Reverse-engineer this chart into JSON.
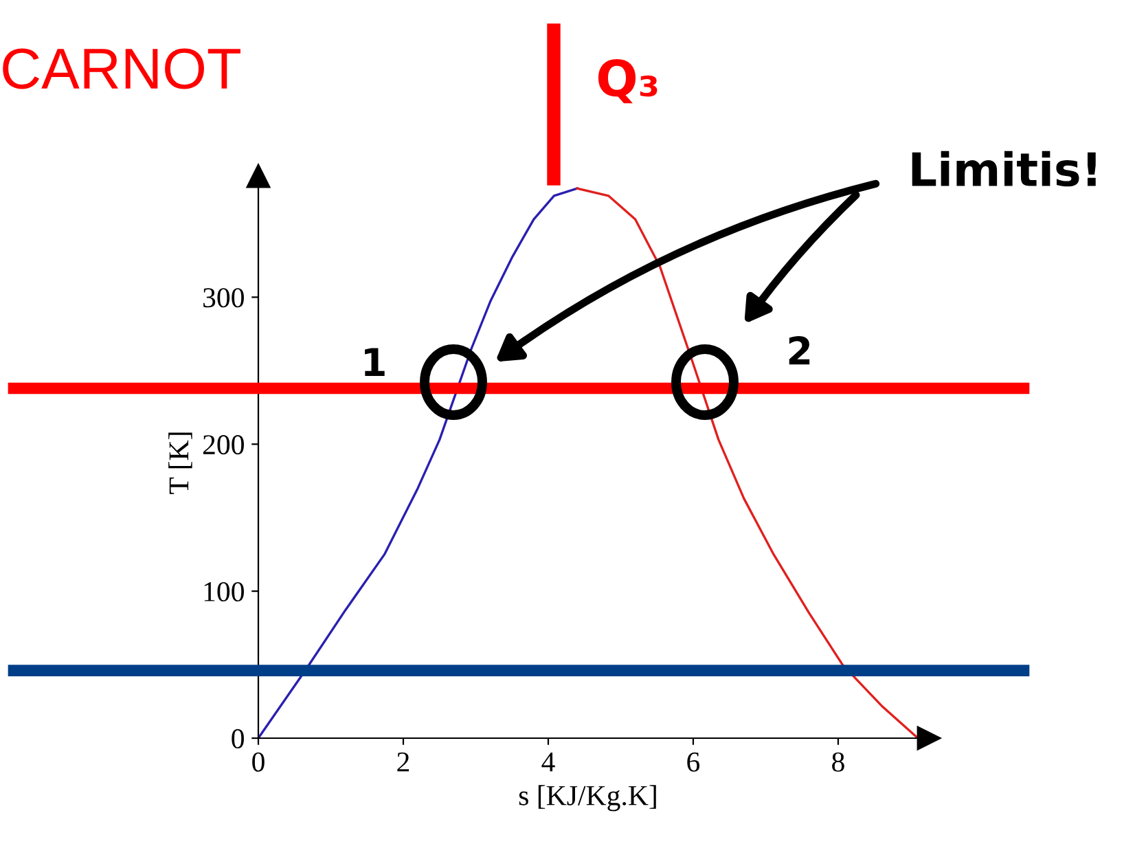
{
  "chart_data": {
    "type": "line",
    "xlabel": "s [KJ/Kg.K]",
    "ylabel": "T [K]",
    "xlim": [
      0,
      9.1
    ],
    "ylim": [
      0,
      375
    ],
    "xticks": [
      0,
      2,
      4,
      6,
      8
    ],
    "yticks": [
      0,
      100,
      200,
      300
    ],
    "grid": false,
    "legend": false,
    "marker": "none",
    "line_style": "solid",
    "series": [
      {
        "color": "#2a1fb0",
        "x": [
          0,
          0.66,
          1.2,
          1.74,
          2.2,
          2.5,
          2.94,
          3.2,
          3.5,
          3.8,
          4.08,
          4.4
        ],
        "values": [
          0,
          47,
          87,
          125,
          170,
          203,
          265,
          297,
          327,
          353,
          369,
          374
        ]
      },
      {
        "color": "#e0201e",
        "x": [
          4.4,
          4.83,
          5.2,
          5.54,
          5.97,
          6.35,
          6.7,
          7.11,
          7.6,
          8.06,
          8.6,
          9.1
        ],
        "values": [
          374,
          369,
          353,
          321,
          259,
          203,
          163,
          125,
          85,
          50,
          22,
          0
        ]
      }
    ],
    "ref_lines": [
      {
        "axis": "y",
        "value": 238,
        "color": "#ff0000"
      },
      {
        "axis": "y",
        "value": 46,
        "color": "#003f87"
      }
    ],
    "annotations": [
      "CARNOT",
      "Q₃",
      "Limitis!",
      {
        "text": "1",
        "x": 2.7,
        "y": 238
      },
      {
        "text": "2",
        "x": 6.15,
        "y": 238
      }
    ]
  }
}
